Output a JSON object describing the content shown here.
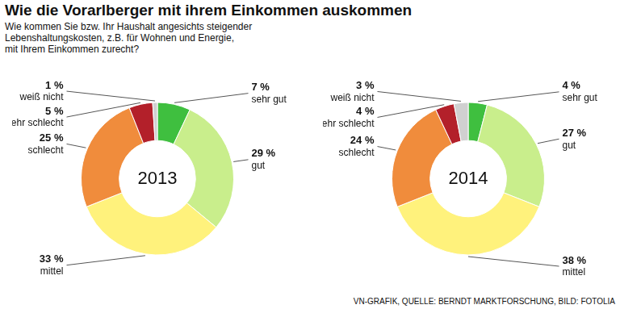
{
  "title": "Wie die Vorarlberger mit ihrem Einkommen auskommen",
  "subtitle": [
    "Wie kommen Sie bzw. Ihr Haushalt angesichts steigender",
    "Lebenshaltungskosten, z.B. für Wohnen und Energie,",
    "mit Ihrem Einkommen zurecht?"
  ],
  "source": "VN-GRAFIK, QUELLE: BERNDT MARKTFORSCHUNG, BILD: FOTOLIA",
  "chart_data": [
    {
      "type": "doughnut",
      "title": "2013",
      "categories": [
        "sehr gut",
        "gut",
        "mittel",
        "schlecht",
        "sehr schlecht",
        "weiß nicht"
      ],
      "values": [
        7,
        29,
        33,
        25,
        5,
        1
      ],
      "value_labels": [
        "7 %",
        "29 %",
        "33 %",
        "25 %",
        "5 %",
        "1 %"
      ],
      "colors": [
        "#3fbf3f",
        "#c9ee8c",
        "#fff27c",
        "#f08c3c",
        "#b3202a",
        "#d0d0d0"
      ],
      "data_labels": true
    },
    {
      "type": "doughnut",
      "title": "2014",
      "categories": [
        "sehr gut",
        "gut",
        "mittel",
        "schlecht",
        "sehr schlecht",
        "weiß nicht"
      ],
      "values": [
        4,
        27,
        38,
        24,
        4,
        3
      ],
      "value_labels": [
        "4 %",
        "27 %",
        "38 %",
        "24 %",
        "4 %",
        "3 %"
      ],
      "colors": [
        "#3fbf3f",
        "#c9ee8c",
        "#fff27c",
        "#f08c3c",
        "#b3202a",
        "#d0d0d0"
      ],
      "data_labels": true
    }
  ]
}
